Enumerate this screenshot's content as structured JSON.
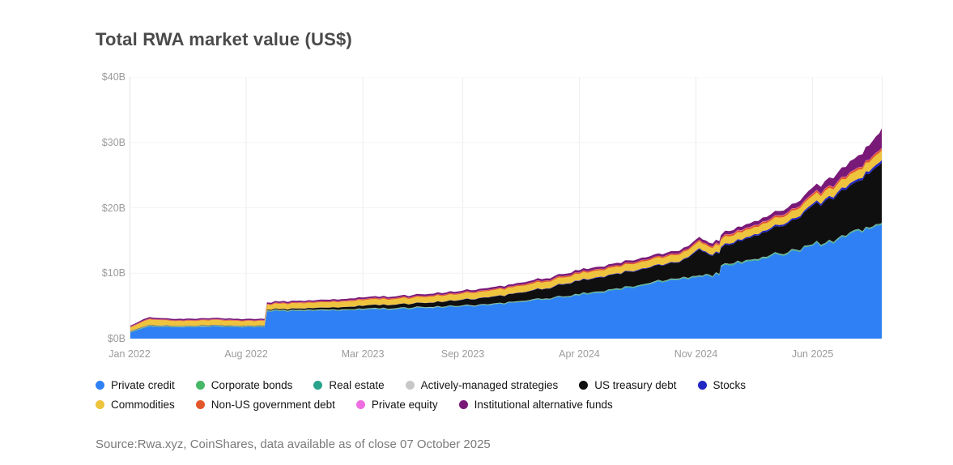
{
  "title": "Total RWA market value (US$)",
  "source_note": "Source:Rwa.xyz, CoinShares, data available as of close 07 October 2025",
  "chart_data": {
    "type": "area",
    "stacked": true,
    "title": "Total RWA market value (US$)",
    "x_unit": "months since Jan 2022 (end of data: 07 Oct 2025)",
    "x_domain": [
      0,
      45.2
    ],
    "y_domain": [
      0,
      40
    ],
    "grid": "vertical-ticks, faint horizontal",
    "legend_position": "bottom",
    "y_ticks": [
      {
        "label": "$40B",
        "value": 40
      },
      {
        "label": "$30B",
        "value": 30
      },
      {
        "label": "$20B",
        "value": 20
      },
      {
        "label": "$10B",
        "value": 10
      },
      {
        "label": "$0B",
        "value": 0
      }
    ],
    "x_ticks": [
      {
        "label": "Jan 2022",
        "m": 0
      },
      {
        "label": "Aug 2022",
        "m": 7
      },
      {
        "label": "Mar 2023",
        "m": 14
      },
      {
        "label": "Sep 2023",
        "m": 20
      },
      {
        "label": "Apr 2024",
        "m": 27
      },
      {
        "label": "Nov 2024",
        "m": 34
      },
      {
        "label": "Jun 2025",
        "m": 41
      }
    ],
    "x_gridlines": [
      0,
      7,
      14,
      20,
      27,
      34,
      41
    ],
    "x": [
      0,
      0.8,
      1.2,
      2,
      2.5,
      3.5,
      4.5,
      5.5,
      6.5,
      7.5,
      8.1,
      8.25,
      9,
      10,
      11,
      12,
      13,
      14,
      15,
      16,
      17,
      18,
      19,
      20,
      21,
      22,
      23,
      24,
      25,
      26,
      27,
      28,
      29,
      30,
      31,
      32,
      33,
      33.8,
      34.2,
      34.8,
      35.4,
      35.5,
      36,
      37,
      38,
      39,
      40,
      41,
      42,
      43,
      44,
      44.6,
      45,
      45.2
    ],
    "series": [
      {
        "name": "Private credit",
        "color": "#2f80f5",
        "values": [
          0.9,
          1.6,
          1.9,
          1.8,
          1.75,
          1.8,
          1.85,
          1.85,
          1.8,
          1.75,
          1.75,
          4.2,
          4.2,
          4.25,
          4.25,
          4.3,
          4.35,
          4.4,
          4.45,
          4.5,
          4.6,
          4.7,
          4.8,
          4.95,
          5.1,
          5.3,
          5.5,
          5.75,
          6.0,
          6.3,
          6.6,
          7.0,
          7.4,
          7.8,
          8.2,
          8.6,
          9.0,
          9.4,
          9.5,
          9.6,
          9.7,
          11.0,
          11.2,
          11.8,
          12.3,
          12.8,
          13.4,
          14.2,
          14.9,
          15.5,
          16.2,
          16.9,
          17.3,
          17.5
        ]
      },
      {
        "name": "Corporate bonds",
        "color": "#46b868",
        "values": [
          0.05,
          0.05,
          0.05,
          0.05,
          0.05,
          0.05,
          0.05,
          0.05,
          0.05,
          0.05,
          0.05,
          0.05,
          0.05,
          0.05,
          0.05,
          0.05,
          0.05,
          0.05,
          0.05,
          0.05,
          0.05,
          0.05,
          0.05,
          0.05,
          0.05,
          0.05,
          0.05,
          0.05,
          0.05,
          0.05,
          0.05,
          0.05,
          0.05,
          0.05,
          0.05,
          0.05,
          0.05,
          0.05,
          0.05,
          0.05,
          0.05,
          0.05,
          0.08,
          0.08,
          0.08,
          0.08,
          0.08,
          0.08,
          0.08,
          0.08,
          0.08,
          0.08,
          0.08,
          0.08
        ]
      },
      {
        "name": "Real estate",
        "color": "#2aa38d",
        "values": [
          0.05,
          0.05,
          0.05,
          0.05,
          0.05,
          0.05,
          0.05,
          0.05,
          0.05,
          0.05,
          0.05,
          0.05,
          0.05,
          0.05,
          0.05,
          0.05,
          0.05,
          0.05,
          0.05,
          0.05,
          0.05,
          0.05,
          0.05,
          0.05,
          0.05,
          0.05,
          0.05,
          0.05,
          0.05,
          0.05,
          0.1,
          0.1,
          0.1,
          0.1,
          0.1,
          0.1,
          0.1,
          0.1,
          0.1,
          0.1,
          0.1,
          0.1,
          0.1,
          0.1,
          0.1,
          0.1,
          0.1,
          0.1,
          0.1,
          0.1,
          0.1,
          0.1,
          0.1,
          0.1
        ]
      },
      {
        "name": "Actively-managed strategies",
        "color": "#c7c7c7",
        "values": [
          0.04,
          0.04,
          0.04,
          0.04,
          0.04,
          0.04,
          0.04,
          0.04,
          0.04,
          0.04,
          0.04,
          0.04,
          0.04,
          0.04,
          0.04,
          0.04,
          0.04,
          0.04,
          0.04,
          0.04,
          0.04,
          0.04,
          0.04,
          0.04,
          0.04,
          0.04,
          0.04,
          0.04,
          0.04,
          0.04,
          0.04,
          0.04,
          0.04,
          0.04,
          0.04,
          0.04,
          0.04,
          0.04,
          0.04,
          0.04,
          0.04,
          0.04,
          0.04,
          0.04,
          0.04,
          0.04,
          0.04,
          0.04,
          0.04,
          0.04,
          0.04,
          0.04,
          0.04,
          0.04
        ]
      },
      {
        "name": "US treasury debt",
        "color": "#0f0f0f",
        "values": [
          0.05,
          0.05,
          0.05,
          0.05,
          0.05,
          0.05,
          0.05,
          0.05,
          0.05,
          0.05,
          0.08,
          0.1,
          0.15,
          0.2,
          0.25,
          0.3,
          0.35,
          0.45,
          0.5,
          0.55,
          0.6,
          0.65,
          0.75,
          0.85,
          0.95,
          1.05,
          1.2,
          1.35,
          1.5,
          1.8,
          2.0,
          2.1,
          2.2,
          2.25,
          2.3,
          2.35,
          2.45,
          3.3,
          4.0,
          3.0,
          3.1,
          2.6,
          2.9,
          3.3,
          3.7,
          4.1,
          4.6,
          5.9,
          6.4,
          7.0,
          7.8,
          8.6,
          9.0,
          9.3
        ]
      },
      {
        "name": "Stocks",
        "color": "#2227c4",
        "values": [
          0.02,
          0.02,
          0.02,
          0.02,
          0.02,
          0.02,
          0.02,
          0.02,
          0.02,
          0.02,
          0.02,
          0.02,
          0.02,
          0.02,
          0.02,
          0.02,
          0.02,
          0.02,
          0.02,
          0.02,
          0.02,
          0.02,
          0.02,
          0.05,
          0.05,
          0.05,
          0.05,
          0.05,
          0.05,
          0.08,
          0.08,
          0.08,
          0.08,
          0.1,
          0.1,
          0.1,
          0.1,
          0.15,
          0.15,
          0.15,
          0.15,
          0.2,
          0.2,
          0.2,
          0.25,
          0.25,
          0.25,
          0.3,
          0.3,
          0.35,
          0.35,
          0.4,
          0.4,
          0.4
        ]
      },
      {
        "name": "Commodities",
        "color": "#eec33e",
        "values": [
          0.55,
          0.8,
          0.85,
          0.8,
          0.75,
          0.75,
          0.75,
          0.75,
          0.72,
          0.7,
          0.7,
          0.75,
          0.8,
          0.8,
          0.8,
          0.8,
          0.82,
          0.85,
          0.85,
          0.85,
          0.87,
          0.9,
          0.9,
          0.9,
          0.92,
          0.95,
          0.95,
          1.0,
          1.0,
          1.0,
          1.0,
          1.02,
          1.02,
          1.05,
          1.05,
          1.05,
          1.05,
          1.05,
          1.05,
          1.05,
          1.08,
          1.1,
          1.1,
          1.1,
          1.12,
          1.15,
          1.18,
          1.2,
          1.25,
          1.3,
          1.35,
          1.4,
          1.45,
          1.5
        ]
      },
      {
        "name": "Non-US government debt",
        "color": "#e2572a",
        "values": [
          0.1,
          0.1,
          0.1,
          0.1,
          0.1,
          0.1,
          0.1,
          0.1,
          0.1,
          0.1,
          0.1,
          0.1,
          0.12,
          0.12,
          0.12,
          0.12,
          0.12,
          0.15,
          0.15,
          0.15,
          0.15,
          0.15,
          0.15,
          0.15,
          0.15,
          0.15,
          0.15,
          0.2,
          0.2,
          0.2,
          0.2,
          0.2,
          0.2,
          0.2,
          0.2,
          0.2,
          0.2,
          0.22,
          0.22,
          0.22,
          0.22,
          0.22,
          0.28,
          0.28,
          0.28,
          0.28,
          0.28,
          0.32,
          0.32,
          0.32,
          0.32,
          0.35,
          0.35,
          0.35
        ]
      },
      {
        "name": "Private equity",
        "color": "#ee6ee2",
        "values": [
          0.02,
          0.02,
          0.02,
          0.02,
          0.02,
          0.02,
          0.02,
          0.02,
          0.02,
          0.02,
          0.02,
          0.02,
          0.02,
          0.02,
          0.02,
          0.02,
          0.02,
          0.02,
          0.02,
          0.02,
          0.02,
          0.02,
          0.02,
          0.02,
          0.02,
          0.02,
          0.02,
          0.02,
          0.02,
          0.02,
          0.02,
          0.02,
          0.02,
          0.02,
          0.02,
          0.02,
          0.02,
          0.02,
          0.02,
          0.02,
          0.02,
          0.02,
          0.05,
          0.05,
          0.05,
          0.05,
          0.05,
          0.05,
          0.05,
          0.05,
          0.05,
          0.05,
          0.05,
          0.05
        ]
      },
      {
        "name": "Institutional alternative funds",
        "color": "#7a1a78",
        "values": [
          0.15,
          0.2,
          0.22,
          0.2,
          0.2,
          0.2,
          0.2,
          0.2,
          0.2,
          0.2,
          0.2,
          0.22,
          0.22,
          0.22,
          0.22,
          0.25,
          0.25,
          0.25,
          0.25,
          0.25,
          0.25,
          0.27,
          0.27,
          0.28,
          0.28,
          0.3,
          0.3,
          0.3,
          0.3,
          0.32,
          0.35,
          0.35,
          0.35,
          0.35,
          0.35,
          0.37,
          0.4,
          0.4,
          0.42,
          0.42,
          0.45,
          0.5,
          0.5,
          0.55,
          0.6,
          0.65,
          0.75,
          0.9,
          1.2,
          1.5,
          1.9,
          2.3,
          2.6,
          3.1
        ]
      }
    ],
    "legend_rows": [
      [
        0,
        1,
        2,
        3,
        4,
        5
      ],
      [
        6,
        7,
        8,
        9
      ]
    ]
  }
}
